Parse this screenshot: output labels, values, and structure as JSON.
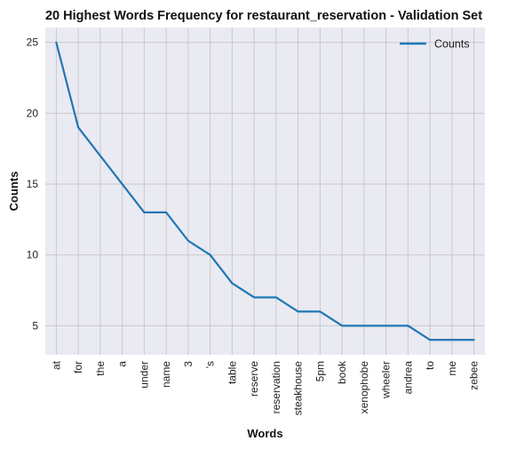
{
  "chart_data": {
    "type": "line",
    "title": "20 Highest Words Frequency for restaurant_reservation - Validation Set",
    "xlabel": "Words",
    "ylabel": "Counts",
    "categories": [
      "at",
      "for",
      "the",
      "a",
      "under",
      "name",
      "3",
      "'s",
      "table",
      "reserve",
      "reservation",
      "steakhouse",
      "5pm",
      "book",
      "xenophobe",
      "wheeler",
      "andrea",
      "to",
      "me",
      "zebee"
    ],
    "series": [
      {
        "name": "Counts",
        "values": [
          25,
          19,
          17,
          15,
          13,
          13,
          11,
          10,
          8,
          7,
          7,
          6,
          6,
          5,
          5,
          5,
          5,
          4,
          4,
          4
        ]
      }
    ],
    "yticks": [
      5,
      10,
      15,
      20,
      25
    ],
    "ylim": [
      2.95,
      26.05
    ],
    "grid": true,
    "legend_position": "top-right",
    "colors": {
      "line": "#1f77b4",
      "plot_background": "#eaeaf2",
      "grid": "#c8c8cc"
    }
  }
}
